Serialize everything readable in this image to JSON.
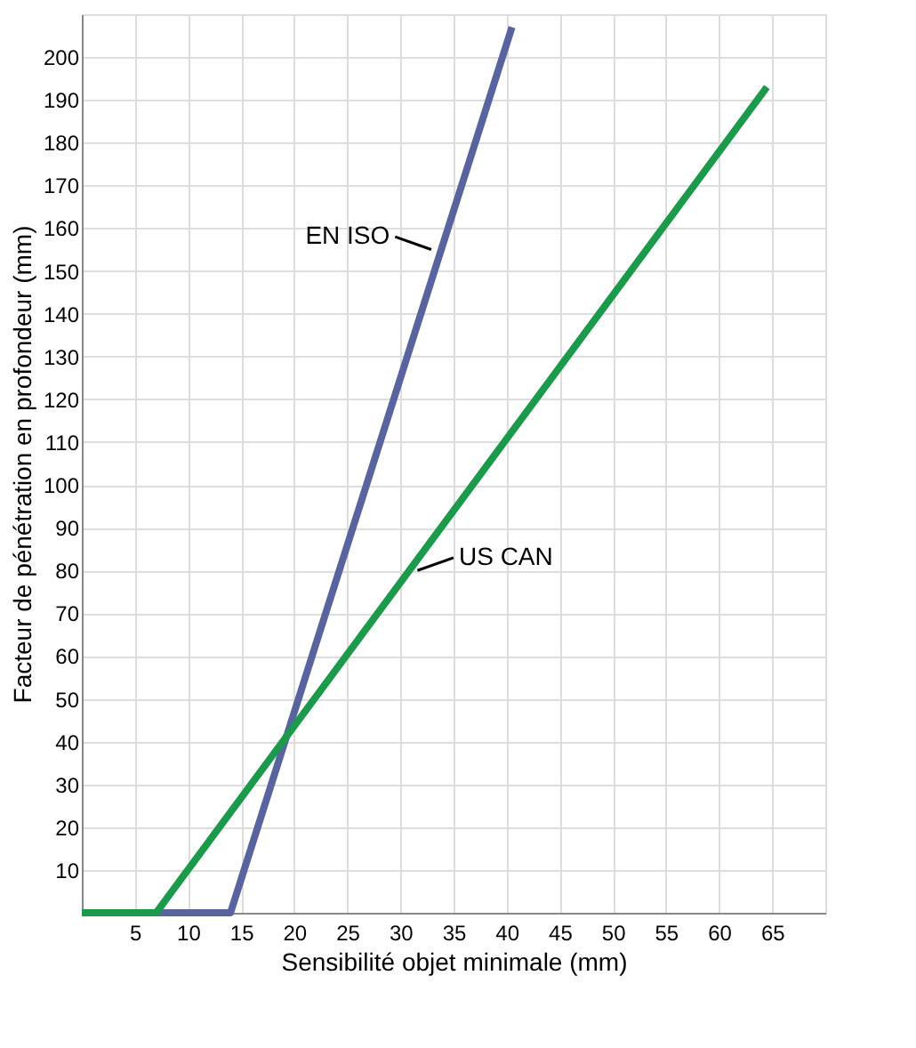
{
  "chart_data": {
    "type": "line",
    "xlabel": "Sensibilité objet minimale (mm)",
    "ylabel": "Facteur de pénétration en profondeur (mm)",
    "xlim": [
      0,
      70
    ],
    "xticks": [
      5,
      10,
      15,
      20,
      25,
      30,
      35,
      40,
      45,
      50,
      55,
      60,
      65
    ],
    "ylim": [
      0,
      210
    ],
    "yticks": [
      10,
      20,
      30,
      40,
      50,
      60,
      70,
      80,
      90,
      100,
      110,
      120,
      130,
      140,
      150,
      160,
      170,
      180,
      190,
      200
    ],
    "grid": true,
    "legend": false,
    "marker": "none",
    "line_style": "solid",
    "series": [
      {
        "color": "#59639e",
        "x": [
          0,
          14,
          40.5
        ],
        "values": [
          0,
          0,
          207
        ]
      },
      {
        "color": "#1a9a4a",
        "x": [
          0,
          7,
          64.5
        ],
        "values": [
          0,
          0,
          193
        ]
      }
    ],
    "annotations": [
      {
        "text": "EN ISO",
        "x": 33.5,
        "y": 155
      },
      {
        "text": "US CAN",
        "x": 31,
        "y": 80
      }
    ]
  }
}
